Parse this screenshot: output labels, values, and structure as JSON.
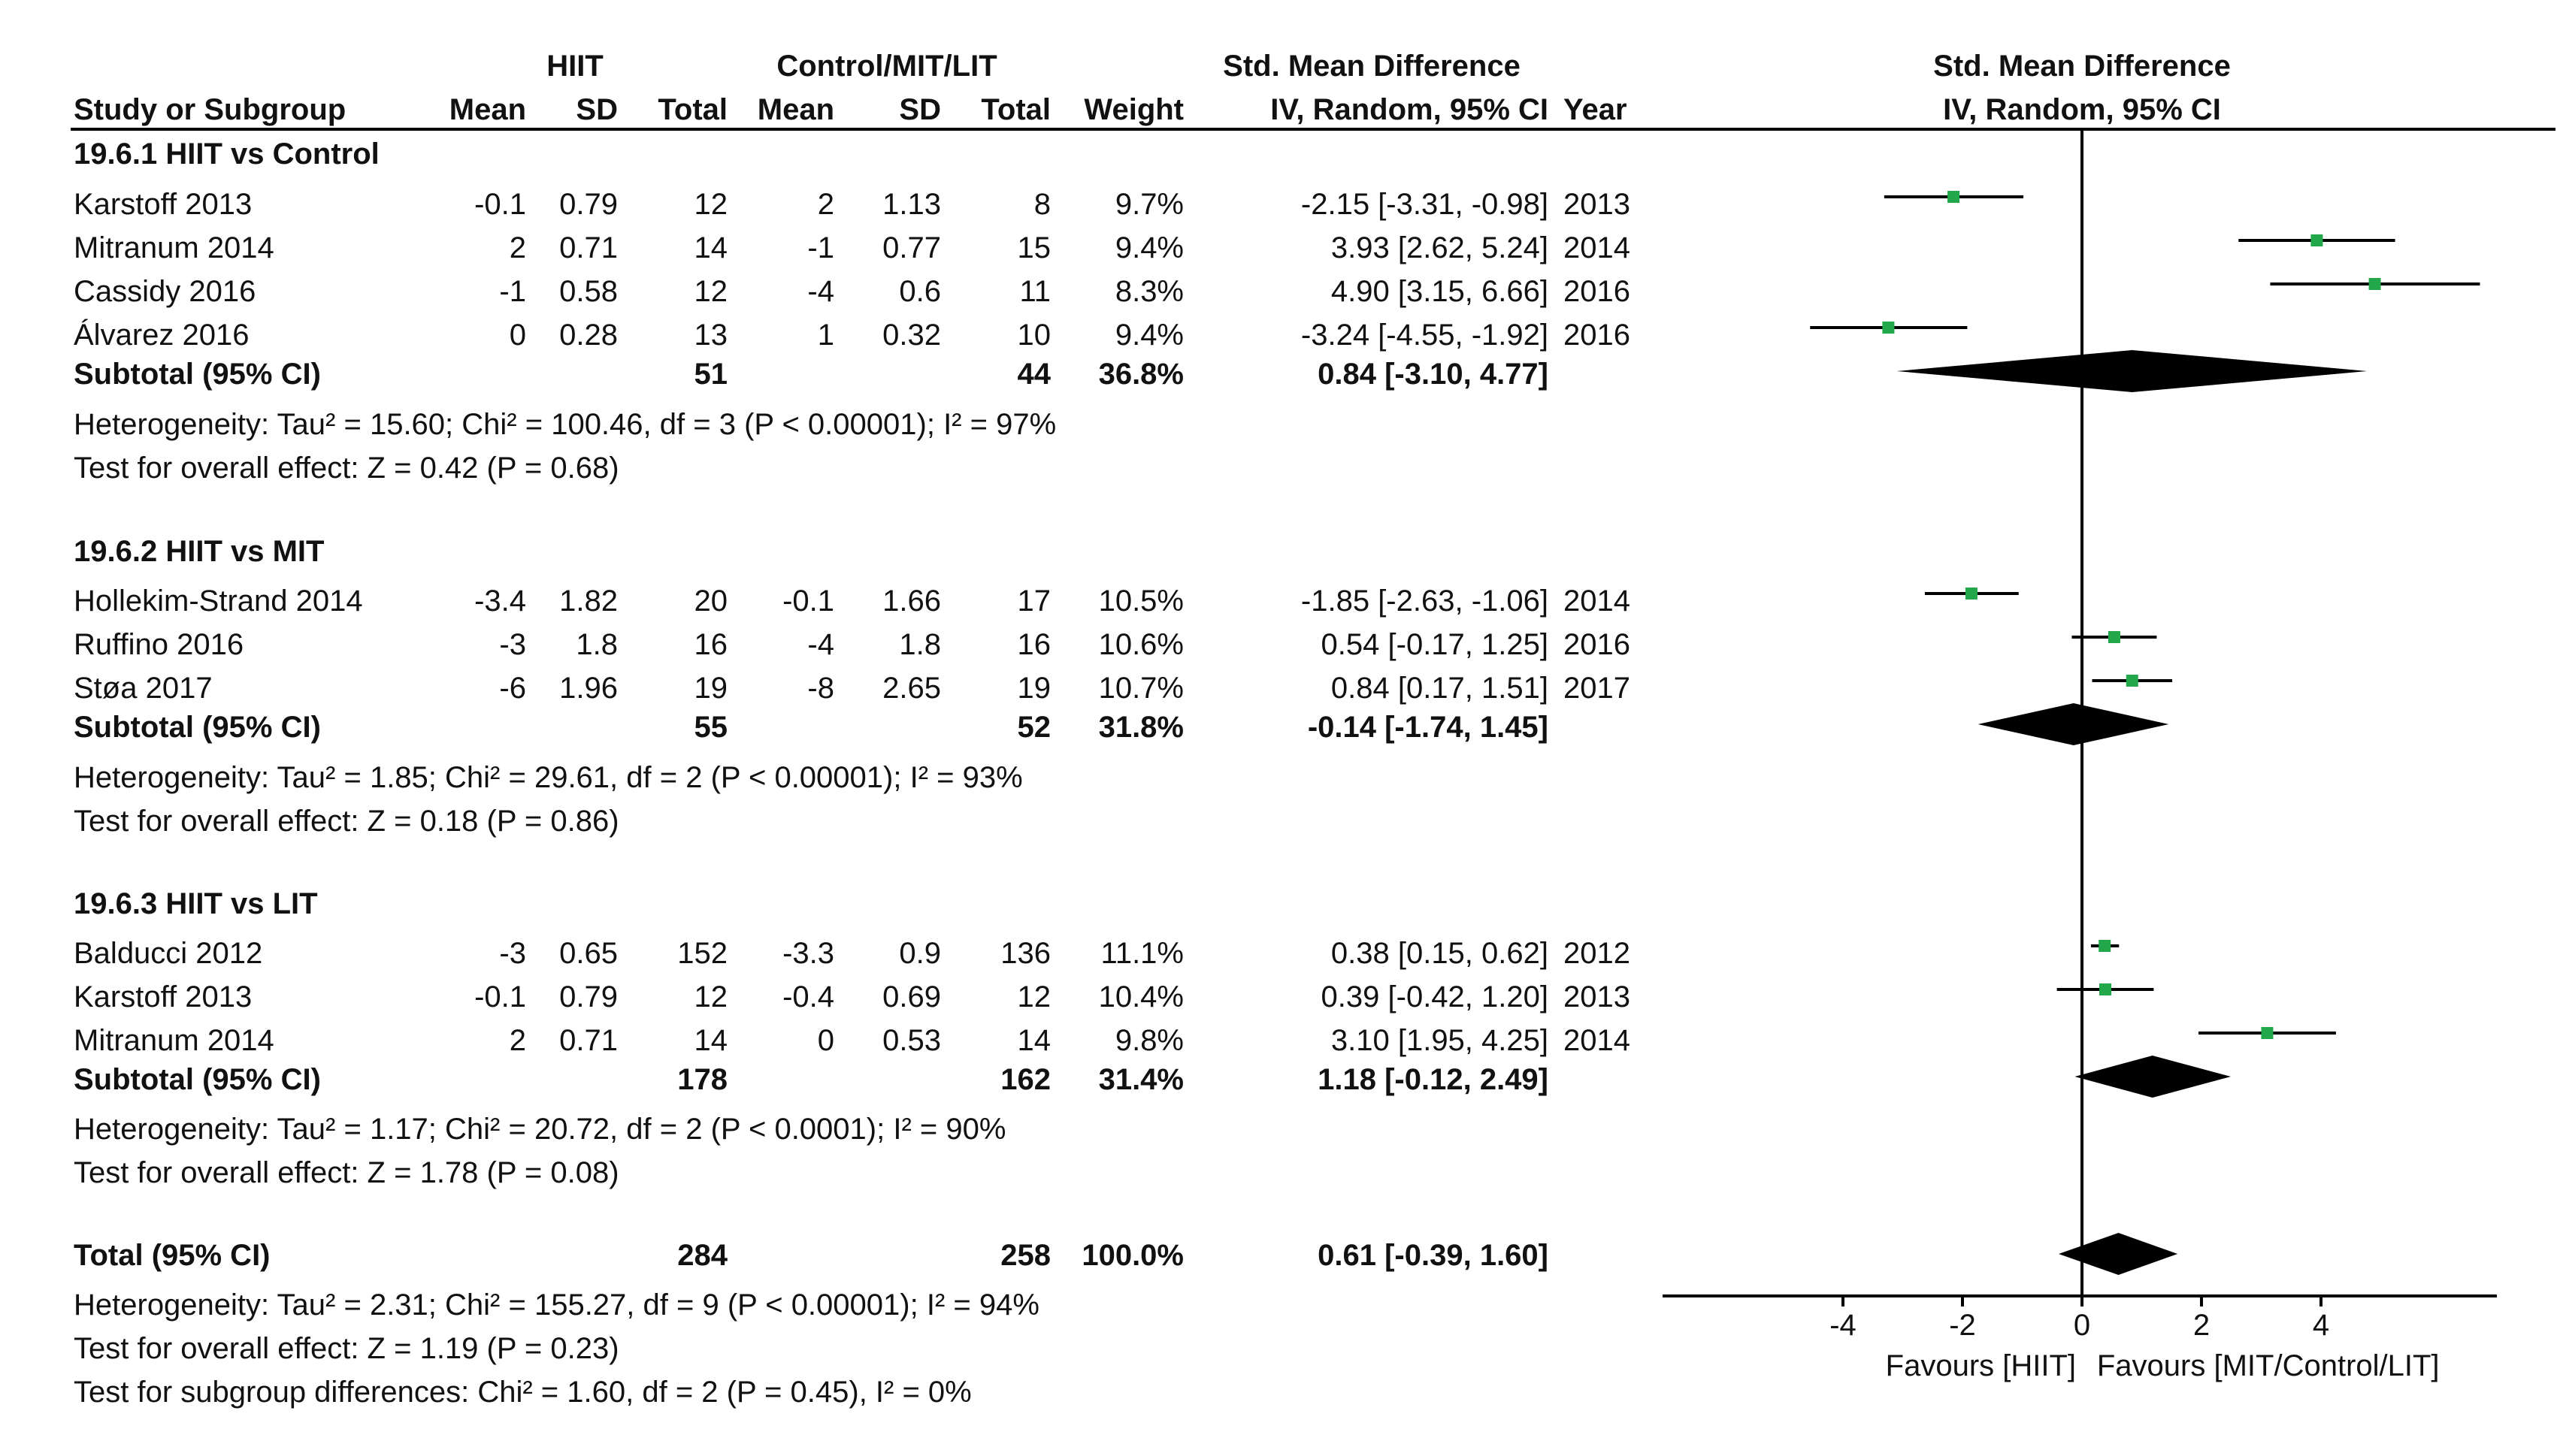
{
  "header": {
    "hiit": "HIIT",
    "control": "Control/MIT/LIT",
    "smd_title": "Std. Mean Difference",
    "plot_title": "Std. Mean Difference",
    "columns": {
      "study": "Study or Subgroup",
      "mean1": "Mean",
      "sd1": "SD",
      "total1": "Total",
      "mean2": "Mean",
      "sd2": "SD",
      "total2": "Total",
      "weight": "Weight",
      "ci": "IV, Random, 95% CI",
      "year": "Year",
      "plot_ci": "IV, Random, 95% CI"
    }
  },
  "groups": [
    {
      "title": "19.6.1 HIIT vs Control",
      "studies": [
        {
          "name": "Karstoff 2013",
          "mean1": "-0.1",
          "sd1": "0.79",
          "total1": "12",
          "mean2": "2",
          "sd2": "1.13",
          "total2": "8",
          "weight": "9.7%",
          "ci": "-2.15 [-3.31, -0.98]",
          "year": "2013"
        },
        {
          "name": "Mitranum 2014",
          "mean1": "2",
          "sd1": "0.71",
          "total1": "14",
          "mean2": "-1",
          "sd2": "0.77",
          "total2": "15",
          "weight": "9.4%",
          "ci": "3.93 [2.62, 5.24]",
          "year": "2014"
        },
        {
          "name": "Cassidy 2016",
          "mean1": "-1",
          "sd1": "0.58",
          "total1": "12",
          "mean2": "-4",
          "sd2": "0.6",
          "total2": "11",
          "weight": "8.3%",
          "ci": "4.90 [3.15, 6.66]",
          "year": "2016"
        },
        {
          "name": "Álvarez 2016",
          "mean1": "0",
          "sd1": "0.28",
          "total1": "13",
          "mean2": "1",
          "sd2": "0.32",
          "total2": "10",
          "weight": "9.4%",
          "ci": "-3.24 [-4.55, -1.92]",
          "year": "2016"
        }
      ],
      "subtotal": {
        "label": "Subtotal (95% CI)",
        "total1": "51",
        "total2": "44",
        "weight": "36.8%",
        "ci": "0.84 [-3.10, 4.77]"
      },
      "heterogeneity": "Heterogeneity: Tau² = 15.60; Chi² = 100.46, df = 3 (P < 0.00001); I² = 97%",
      "overall": "Test for overall effect: Z = 0.42 (P = 0.68)"
    },
    {
      "title": "19.6.2 HIIT vs MIT",
      "studies": [
        {
          "name": "Hollekim-Strand 2014",
          "mean1": "-3.4",
          "sd1": "1.82",
          "total1": "20",
          "mean2": "-0.1",
          "sd2": "1.66",
          "total2": "17",
          "weight": "10.5%",
          "ci": "-1.85 [-2.63, -1.06]",
          "year": "2014"
        },
        {
          "name": "Ruffino 2016",
          "mean1": "-3",
          "sd1": "1.8",
          "total1": "16",
          "mean2": "-4",
          "sd2": "1.8",
          "total2": "16",
          "weight": "10.6%",
          "ci": "0.54 [-0.17, 1.25]",
          "year": "2016"
        },
        {
          "name": "Støa 2017",
          "mean1": "-6",
          "sd1": "1.96",
          "total1": "19",
          "mean2": "-8",
          "sd2": "2.65",
          "total2": "19",
          "weight": "10.7%",
          "ci": "0.84 [0.17, 1.51]",
          "year": "2017"
        }
      ],
      "subtotal": {
        "label": "Subtotal (95% CI)",
        "total1": "55",
        "total2": "52",
        "weight": "31.8%",
        "ci": "-0.14 [-1.74, 1.45]"
      },
      "heterogeneity": "Heterogeneity: Tau² = 1.85; Chi² = 29.61, df = 2 (P < 0.00001); I² = 93%",
      "overall": "Test for overall effect: Z = 0.18 (P = 0.86)"
    },
    {
      "title": "19.6.3 HIIT vs LIT",
      "studies": [
        {
          "name": "Balducci 2012",
          "mean1": "-3",
          "sd1": "0.65",
          "total1": "152",
          "mean2": "-3.3",
          "sd2": "0.9",
          "total2": "136",
          "weight": "11.1%",
          "ci": "0.38 [0.15, 0.62]",
          "year": "2012"
        },
        {
          "name": "Karstoff 2013",
          "mean1": "-0.1",
          "sd1": "0.79",
          "total1": "12",
          "mean2": "-0.4",
          "sd2": "0.69",
          "total2": "12",
          "weight": "10.4%",
          "ci": "0.39 [-0.42, 1.20]",
          "year": "2013"
        },
        {
          "name": "Mitranum 2014",
          "mean1": "2",
          "sd1": "0.71",
          "total1": "14",
          "mean2": "0",
          "sd2": "0.53",
          "total2": "14",
          "weight": "9.8%",
          "ci": "3.10 [1.95, 4.25]",
          "year": "2014"
        }
      ],
      "subtotal": {
        "label": "Subtotal (95% CI)",
        "total1": "178",
        "total2": "162",
        "weight": "31.4%",
        "ci": "1.18 [-0.12, 2.49]"
      },
      "heterogeneity": "Heterogeneity: Tau² = 1.17; Chi² = 20.72, df = 2 (P < 0.0001); I² = 90%",
      "overall": "Test for overall effect: Z = 1.78 (P = 0.08)"
    }
  ],
  "total": {
    "label": "Total (95% CI)",
    "total1": "284",
    "total2": "258",
    "weight": "100.0%",
    "ci": "0.61 [-0.39, 1.60]",
    "heterogeneity": "Heterogeneity: Tau² = 2.31; Chi² = 155.27, df = 9 (P < 0.00001); I² = 94%",
    "overall": "Test for overall effect: Z = 1.19 (P = 0.23)",
    "subgroup": "Test for subgroup differences: Chi² = 1.60, df = 2 (P = 0.45), I² = 0%"
  },
  "colors": {
    "marker": "#22a84a",
    "diamond": "#000000",
    "line": "#000000"
  },
  "chart_data": {
    "type": "forest",
    "title": "Std. Mean Difference",
    "subtitle": "IV, Random, 95% CI",
    "xlim": [
      -7.2,
      7.0
    ],
    "ticks": [
      -4,
      -2,
      0,
      2,
      4
    ],
    "tick_labels": [
      "-4",
      "-2",
      "0",
      "2",
      "4"
    ],
    "xlabel_left": "Favours [HIIT]",
    "xlabel_right": "Favours [MIT/Control/LIT]",
    "studies": [
      {
        "label": "Karstoff 2013",
        "group": "19.6.1",
        "est": -2.15,
        "lo": -3.31,
        "hi": -0.98
      },
      {
        "label": "Mitranum 2014",
        "group": "19.6.1",
        "est": 3.93,
        "lo": 2.62,
        "hi": 5.24
      },
      {
        "label": "Cassidy 2016",
        "group": "19.6.1",
        "est": 4.9,
        "lo": 3.15,
        "hi": 6.66
      },
      {
        "label": "Álvarez 2016",
        "group": "19.6.1",
        "est": -3.24,
        "lo": -4.55,
        "hi": -1.92
      },
      {
        "label": "Hollekim-Strand 2014",
        "group": "19.6.2",
        "est": -1.85,
        "lo": -2.63,
        "hi": -1.06
      },
      {
        "label": "Ruffino 2016",
        "group": "19.6.2",
        "est": 0.54,
        "lo": -0.17,
        "hi": 1.25
      },
      {
        "label": "Støa 2017",
        "group": "19.6.2",
        "est": 0.84,
        "lo": 0.17,
        "hi": 1.51
      },
      {
        "label": "Balducci 2012",
        "group": "19.6.3",
        "est": 0.38,
        "lo": 0.15,
        "hi": 0.62
      },
      {
        "label": "Karstoff 2013",
        "group": "19.6.3",
        "est": 0.39,
        "lo": -0.42,
        "hi": 1.2
      },
      {
        "label": "Mitranum 2014",
        "group": "19.6.3",
        "est": 3.1,
        "lo": 1.95,
        "hi": 4.25
      }
    ],
    "subtotals": [
      {
        "label": "Subtotal 19.6.1",
        "est": 0.84,
        "lo": -3.1,
        "hi": 4.77
      },
      {
        "label": "Subtotal 19.6.2",
        "est": -0.14,
        "lo": -1.74,
        "hi": 1.45
      },
      {
        "label": "Subtotal 19.6.3",
        "est": 1.18,
        "lo": -0.12,
        "hi": 2.49
      }
    ],
    "overall": {
      "label": "Total",
      "est": 0.61,
      "lo": -0.39,
      "hi": 1.6
    }
  }
}
